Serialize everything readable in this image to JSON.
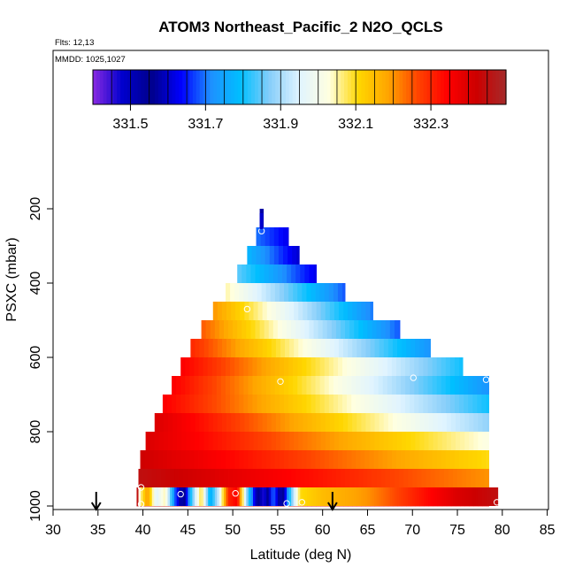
{
  "chart_data": {
    "type": "heatmap",
    "title": "ATOM3 Northeast_Pacific_2 N2O_QCLS",
    "flights_text": "Flts: 12,13",
    "dates_text": "MMDD: 1025,1027",
    "xlabel": "Latitude (deg N)",
    "ylabel": "PSXC (mbar)",
    "xlim": [
      30,
      85
    ],
    "ylim": [
      1000,
      100
    ],
    "x_ticks": [
      30,
      35,
      40,
      45,
      50,
      55,
      60,
      65,
      70,
      75,
      80,
      85
    ],
    "y_ticks": [
      200,
      400,
      600,
      800,
      1000
    ],
    "colorbar": {
      "range": [
        331.4,
        332.5
      ],
      "tick_values": [
        331.5,
        331.7,
        331.9,
        332.1,
        332.3
      ],
      "tick_labels": [
        "331.5",
        "331.7",
        "331.9",
        "332.1",
        "332.3"
      ],
      "divider_values": [
        331.45,
        331.5,
        331.55,
        331.6,
        331.65,
        331.7,
        331.75,
        331.8,
        331.85,
        331.9,
        331.95,
        332.0,
        332.05,
        332.1,
        332.15,
        332.2,
        332.25,
        332.3,
        332.35,
        332.4,
        332.45
      ],
      "colors": [
        "#8a2be2",
        "#0000cd",
        "#00008b",
        "#0000ff",
        "#1e90ff",
        "#00bfff",
        "#87cefa",
        "#e0f4ff",
        "#ffffe0",
        "#ffd700",
        "#ffa500",
        "#ff4500",
        "#ff0000",
        "#cd0000",
        "#a52a2a"
      ]
    },
    "layers": [
      {
        "p": 225,
        "lat_min": 53.0,
        "lat_max": 53.4,
        "v_south": 331.55,
        "v_north": 331.6
      },
      {
        "p": 275,
        "lat_min": 52.6,
        "lat_max": 56.2,
        "v_south": 331.7,
        "v_north": 331.62
      },
      {
        "p": 325,
        "lat_min": 51.6,
        "lat_max": 57.4,
        "v_south": 331.78,
        "v_north": 331.6
      },
      {
        "p": 375,
        "lat_min": 50.5,
        "lat_max": 59.3,
        "v_south": 331.85,
        "v_north": 331.62
      },
      {
        "p": 425,
        "lat_min": 49.2,
        "lat_max": 62.5,
        "v_south": 332.05,
        "v_north": 331.68
      },
      {
        "p": 475,
        "lat_min": 47.8,
        "lat_max": 65.6,
        "v_south": 332.2,
        "v_north": 331.7
      },
      {
        "p": 525,
        "lat_min": 46.5,
        "lat_max": 68.6,
        "v_south": 332.25,
        "v_north": 331.68
      },
      {
        "p": 575,
        "lat_min": 45.3,
        "lat_max": 72.0,
        "v_south": 332.3,
        "v_north": 331.72
      },
      {
        "p": 625,
        "lat_min": 44.2,
        "lat_max": 75.6,
        "v_south": 332.35,
        "v_north": 331.8
      },
      {
        "p": 675,
        "lat_min": 43.2,
        "lat_max": 78.5,
        "v_south": 332.35,
        "v_north": 331.72
      },
      {
        "p": 725,
        "lat_min": 42.2,
        "lat_max": 78.5,
        "v_south": 332.35,
        "v_north": 331.8
      },
      {
        "p": 775,
        "lat_min": 41.3,
        "lat_max": 78.5,
        "v_south": 332.4,
        "v_north": 331.88
      },
      {
        "p": 825,
        "lat_min": 40.3,
        "lat_max": 78.5,
        "v_south": 332.4,
        "v_north": 332.02
      },
      {
        "p": 875,
        "lat_min": 39.7,
        "lat_max": 78.5,
        "v_south": 332.42,
        "v_north": 332.1
      },
      {
        "p": 925,
        "lat_min": 39.5,
        "lat_max": 78.5,
        "v_south": 332.45,
        "v_north": 332.2
      },
      {
        "p": 975,
        "lat_min": 39.3,
        "lat_max": 78.5,
        "v_south": 332.45,
        "v_north": 332.35
      }
    ],
    "surface_layer": {
      "p_top": 950,
      "p_bottom": 1000,
      "lat_min": 39.5,
      "lat_max": 79.5,
      "stops": [
        {
          "lat": 39.5,
          "v": 332.0
        },
        {
          "lat": 40.5,
          "v": 332.2
        },
        {
          "lat": 41.5,
          "v": 331.95
        },
        {
          "lat": 42.5,
          "v": 332.05
        },
        {
          "lat": 43.5,
          "v": 331.7
        },
        {
          "lat": 44.5,
          "v": 331.5
        },
        {
          "lat": 45.5,
          "v": 331.85
        },
        {
          "lat": 46.5,
          "v": 332.1
        },
        {
          "lat": 47.5,
          "v": 331.75
        },
        {
          "lat": 48.5,
          "v": 331.95
        },
        {
          "lat": 49.5,
          "v": 332.3
        },
        {
          "lat": 50.5,
          "v": 332.35
        },
        {
          "lat": 51.5,
          "v": 331.9
        },
        {
          "lat": 52.5,
          "v": 331.6
        },
        {
          "lat": 53.5,
          "v": 331.45
        },
        {
          "lat": 54.5,
          "v": 331.7
        },
        {
          "lat": 55.5,
          "v": 331.5
        },
        {
          "lat": 56.5,
          "v": 331.85
        },
        {
          "lat": 57.5,
          "v": 332.1
        },
        {
          "lat": 60.0,
          "v": 332.15
        },
        {
          "lat": 65.0,
          "v": 332.2
        },
        {
          "lat": 70.0,
          "v": 332.3
        },
        {
          "lat": 75.0,
          "v": 332.4
        },
        {
          "lat": 79.5,
          "v": 332.45
        }
      ]
    },
    "markers": [
      {
        "lat": 53.2,
        "p": 260
      },
      {
        "lat": 51.6,
        "p": 470
      },
      {
        "lat": 55.3,
        "p": 665
      },
      {
        "lat": 70.1,
        "p": 655
      },
      {
        "lat": 78.2,
        "p": 660
      },
      {
        "lat": 39.8,
        "p": 950
      },
      {
        "lat": 44.2,
        "p": 968
      },
      {
        "lat": 50.3,
        "p": 966
      },
      {
        "lat": 39.8,
        "p": 995
      },
      {
        "lat": 56.0,
        "p": 993
      },
      {
        "lat": 57.7,
        "p": 990
      },
      {
        "lat": 79.4,
        "p": 990
      }
    ],
    "arrows": [
      {
        "lat": 34.8,
        "direction": "down"
      },
      {
        "lat": 61.1,
        "direction": "down"
      },
      {
        "lat": 53.2,
        "direction": "down",
        "p_top": 200
      }
    ]
  }
}
